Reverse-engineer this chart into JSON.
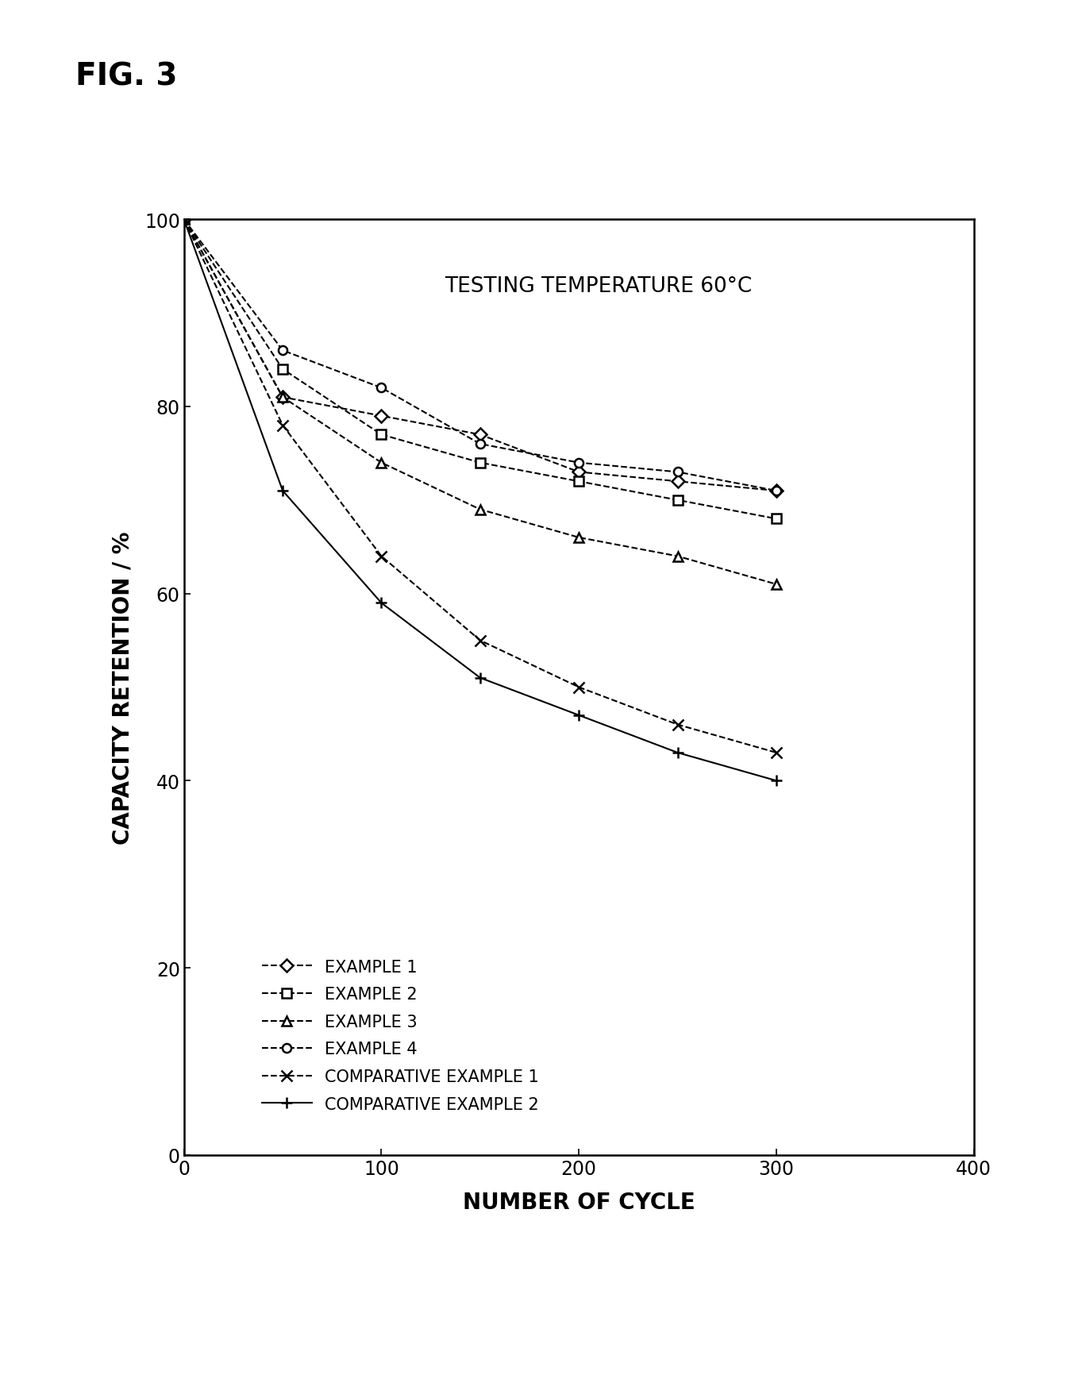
{
  "title": "FIG. 3",
  "annotation": "TESTING TEMPERATURE 60°C",
  "xlabel": "NUMBER OF CYCLE",
  "ylabel": "CAPACITY RETENTION / %",
  "xlim": [
    0,
    400
  ],
  "ylim": [
    0,
    100
  ],
  "xticks": [
    0,
    100,
    200,
    300,
    400
  ],
  "yticks": [
    0,
    20,
    40,
    60,
    80,
    100
  ],
  "series": [
    {
      "label": "EXAMPLE 1",
      "x": [
        0,
        50,
        100,
        150,
        200,
        250,
        300
      ],
      "y": [
        100,
        81,
        79,
        77,
        73,
        72,
        71
      ],
      "marker": "D",
      "linestyle": "--",
      "color": "#000000",
      "markersize": 8,
      "markerfacecolor": "white"
    },
    {
      "label": "EXAMPLE 2",
      "x": [
        0,
        50,
        100,
        150,
        200,
        250,
        300
      ],
      "y": [
        100,
        84,
        77,
        74,
        72,
        70,
        68
      ],
      "marker": "s",
      "linestyle": "--",
      "color": "#000000",
      "markersize": 8,
      "markerfacecolor": "white"
    },
    {
      "label": "EXAMPLE 3",
      "x": [
        0,
        50,
        100,
        150,
        200,
        250,
        300
      ],
      "y": [
        100,
        81,
        74,
        69,
        66,
        64,
        61
      ],
      "marker": "^",
      "linestyle": "--",
      "color": "#000000",
      "markersize": 8,
      "markerfacecolor": "white"
    },
    {
      "label": "EXAMPLE 4",
      "x": [
        0,
        50,
        100,
        150,
        200,
        250,
        300
      ],
      "y": [
        100,
        86,
        82,
        76,
        74,
        73,
        71
      ],
      "marker": "o",
      "linestyle": "--",
      "color": "#000000",
      "markersize": 8,
      "markerfacecolor": "white"
    },
    {
      "label": "COMPARATIVE EXAMPLE 1",
      "x": [
        0,
        50,
        100,
        150,
        200,
        250,
        300
      ],
      "y": [
        100,
        78,
        64,
        55,
        50,
        46,
        43
      ],
      "marker": "x",
      "linestyle": "--",
      "color": "#000000",
      "markersize": 10,
      "markerfacecolor": "#000000"
    },
    {
      "label": "COMPARATIVE EXAMPLE 2",
      "x": [
        0,
        50,
        100,
        150,
        200,
        250,
        300
      ],
      "y": [
        100,
        71,
        59,
        51,
        47,
        43,
        40
      ],
      "marker": "+",
      "linestyle": "-",
      "color": "#000000",
      "markersize": 10,
      "markerfacecolor": "#000000"
    }
  ],
  "background_color": "#ffffff",
  "fig_label_fontsize": 28,
  "axis_label_fontsize": 20,
  "tick_fontsize": 17,
  "legend_fontsize": 15,
  "annotation_fontsize": 19
}
